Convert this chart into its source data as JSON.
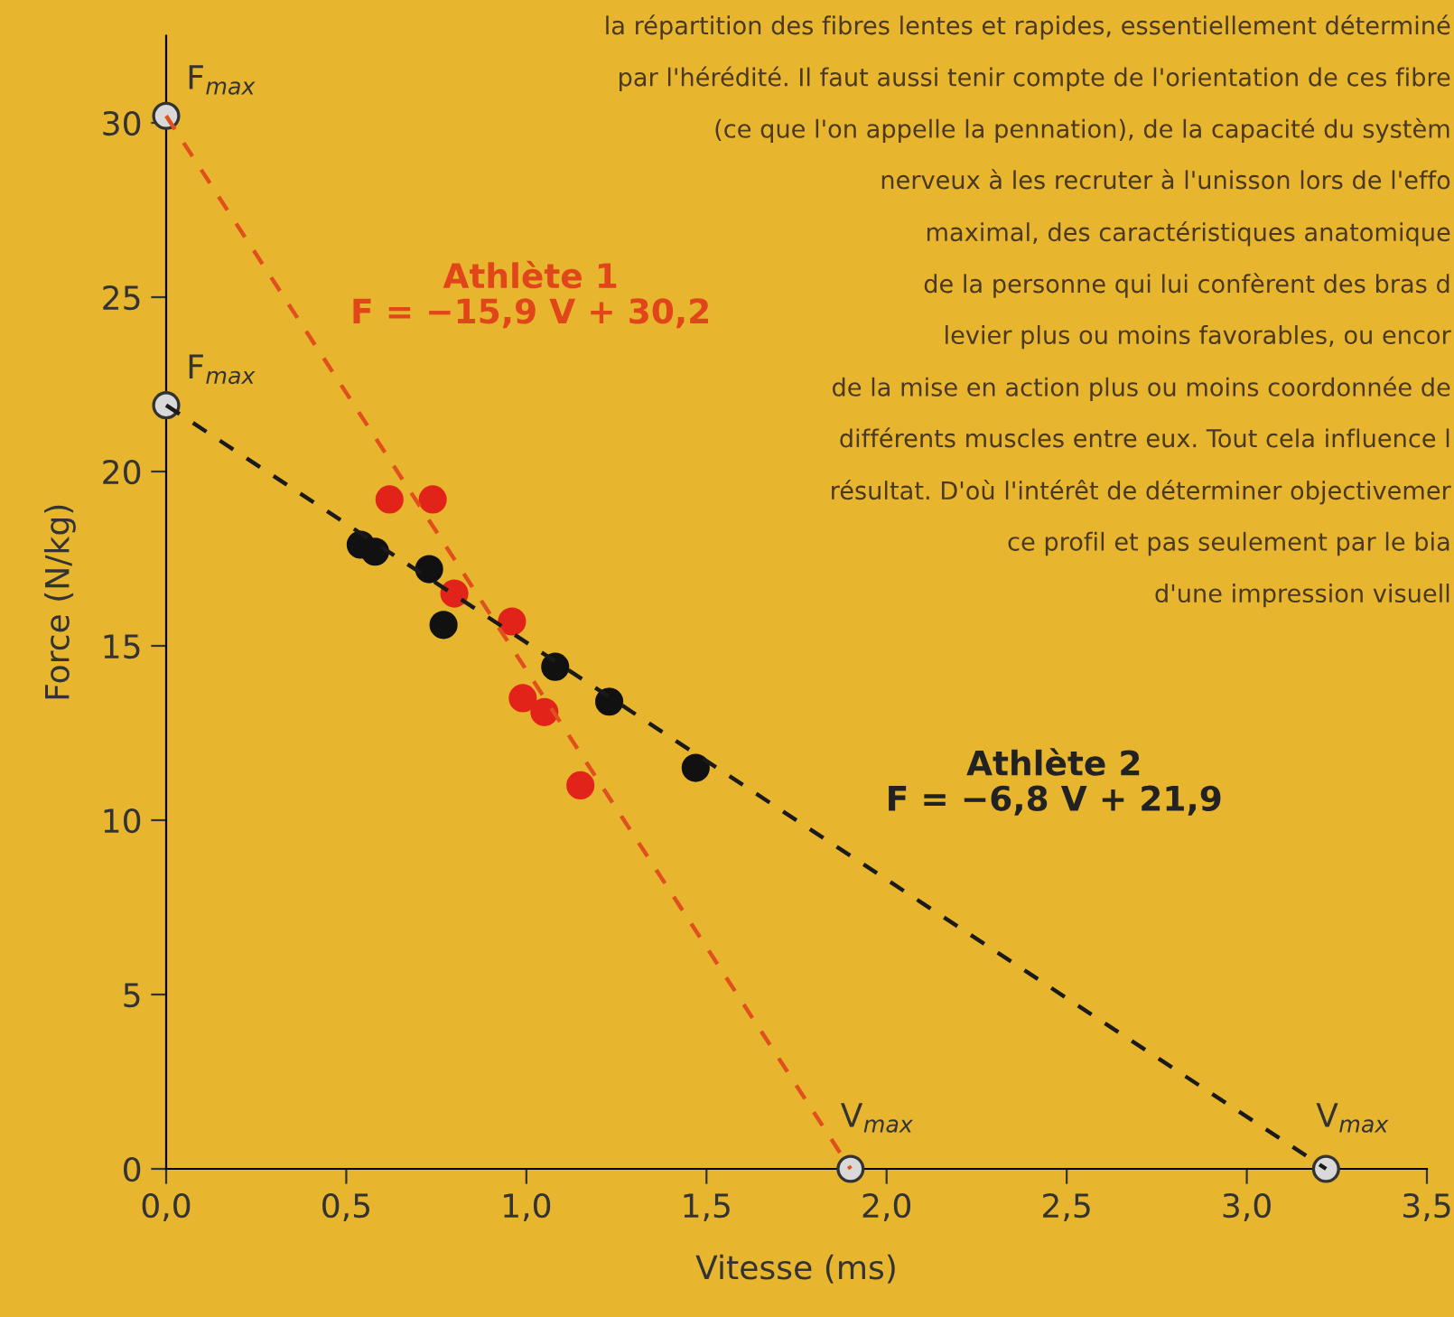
{
  "chart_data": {
    "type": "scatter",
    "xlabel": "Vitesse (ms)",
    "ylabel": "Force (N/kg)",
    "xlim": [
      0,
      3.5
    ],
    "ylim": [
      0,
      32.5
    ],
    "xticks": [
      {
        "value": 0,
        "label": "0,0"
      },
      {
        "value": 0.5,
        "label": "0,5"
      },
      {
        "value": 1,
        "label": "1,0"
      },
      {
        "value": 1.5,
        "label": "1,5"
      },
      {
        "value": 2,
        "label": "2,0"
      },
      {
        "value": 2.5,
        "label": "2,5"
      },
      {
        "value": 3,
        "label": "3,0"
      },
      {
        "value": 3.5,
        "label": "3,5"
      }
    ],
    "yticks": [
      0,
      5,
      10,
      15,
      20,
      25,
      30
    ],
    "grid": false,
    "legend": false,
    "marker": "circle",
    "series": [
      {
        "type": "line",
        "line_style": "dashed",
        "marker": "none",
        "color": "#e0501e",
        "x": [
          0,
          1.9
        ],
        "values": [
          30.2,
          0
        ]
      },
      {
        "type": "line",
        "line_style": "dashed",
        "marker": "none",
        "color": "#1a1a1a",
        "x": [
          0,
          3.22
        ],
        "values": [
          21.9,
          0
        ]
      },
      {
        "color": "#e2231a",
        "x": [
          0.62,
          0.74,
          0.8,
          0.96,
          0.99,
          1.05,
          1.15
        ],
        "values": [
          19.2,
          19.2,
          16.5,
          15.7,
          13.5,
          13.1,
          11.0
        ]
      },
      {
        "color": "#111111",
        "x": [
          0.54,
          0.58,
          0.73,
          0.77,
          1.08,
          1.23,
          1.47
        ],
        "values": [
          17.9,
          17.7,
          17.2,
          15.6,
          14.4,
          13.4,
          11.5
        ]
      },
      {
        "color": "#d9d9d9",
        "x": [
          0,
          0,
          1.9,
          3.22
        ],
        "values": [
          30.2,
          21.9,
          0,
          0
        ]
      }
    ],
    "annotations": [
      {
        "text": "F$_{max}$",
        "x": 0,
        "y": 30.2
      },
      {
        "text": "F$_{max}$",
        "x": 0,
        "y": 21.9
      },
      {
        "text": "V$_{max}$",
        "x": 1.9,
        "y": 0
      },
      {
        "text": "V$_{max}$",
        "x": 3.22,
        "y": 0
      },
      "Athlète 1\nF = −15,9 V + 30,2",
      "Athlète 2\nF = −6,8 V + 21,9",
      "la répartition des fibres lentes et rapides, essentiellement déterminé",
      "par l'hérédité. Il faut aussi tenir compte de l'orientation de ces fibre",
      "(ce que l'on appelle la pennation), de la capacité du systèm",
      "nerveux à les recruter à l'unisson lors de l'effo",
      "maximal, des caractéristiques anatomique",
      "de la personne qui lui confèrent des bras d",
      "levier plus ou moins favorables, ou encor",
      "de la mise en action plus ou moins coordonnée de",
      "différents muscles entre eux. Tout cela influence l",
      "résultat. D'où l'intérêt de déterminer objectivemer",
      "ce profil et pas seulement par le bia",
      "d'une impression visuell"
    ]
  }
}
